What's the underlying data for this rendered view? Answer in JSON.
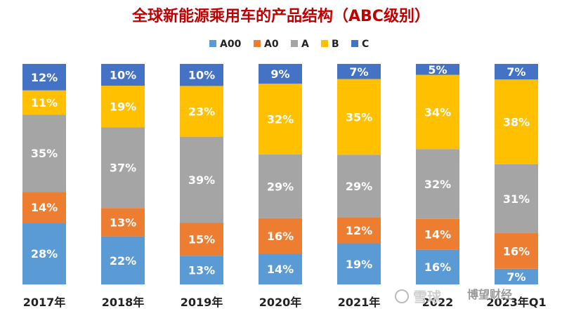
{
  "chart_data": {
    "type": "bar",
    "stacked": true,
    "normalized": true,
    "title": "全球新能源乘用车的产品结构（ABC级别）",
    "categories": [
      "2017年",
      "2018年",
      "2019年",
      "2020年",
      "2021年",
      "2022",
      "2023年Q1"
    ],
    "series": [
      {
        "name": "A00",
        "color": "#5B9BD5",
        "values": [
          28,
          22,
          13,
          14,
          19,
          16,
          7
        ]
      },
      {
        "name": "A0",
        "color": "#ED7D31",
        "values": [
          14,
          13,
          15,
          16,
          12,
          14,
          16
        ]
      },
      {
        "name": "A",
        "color": "#A5A5A5",
        "values": [
          35,
          37,
          39,
          29,
          29,
          32,
          31
        ]
      },
      {
        "name": "B",
        "color": "#FFC000",
        "values": [
          11,
          19,
          23,
          32,
          35,
          34,
          38
        ]
      },
      {
        "name": "C",
        "color": "#4472C4",
        "values": [
          12,
          10,
          10,
          9,
          7,
          5,
          7
        ]
      }
    ],
    "value_suffix": "%",
    "ylim": [
      0,
      100
    ],
    "legend_position": "top",
    "grid": false
  },
  "watermark": {
    "text": "雪球",
    "author": "博望财经"
  },
  "colors": {
    "title": "#C00000",
    "label": "#ffffff"
  }
}
